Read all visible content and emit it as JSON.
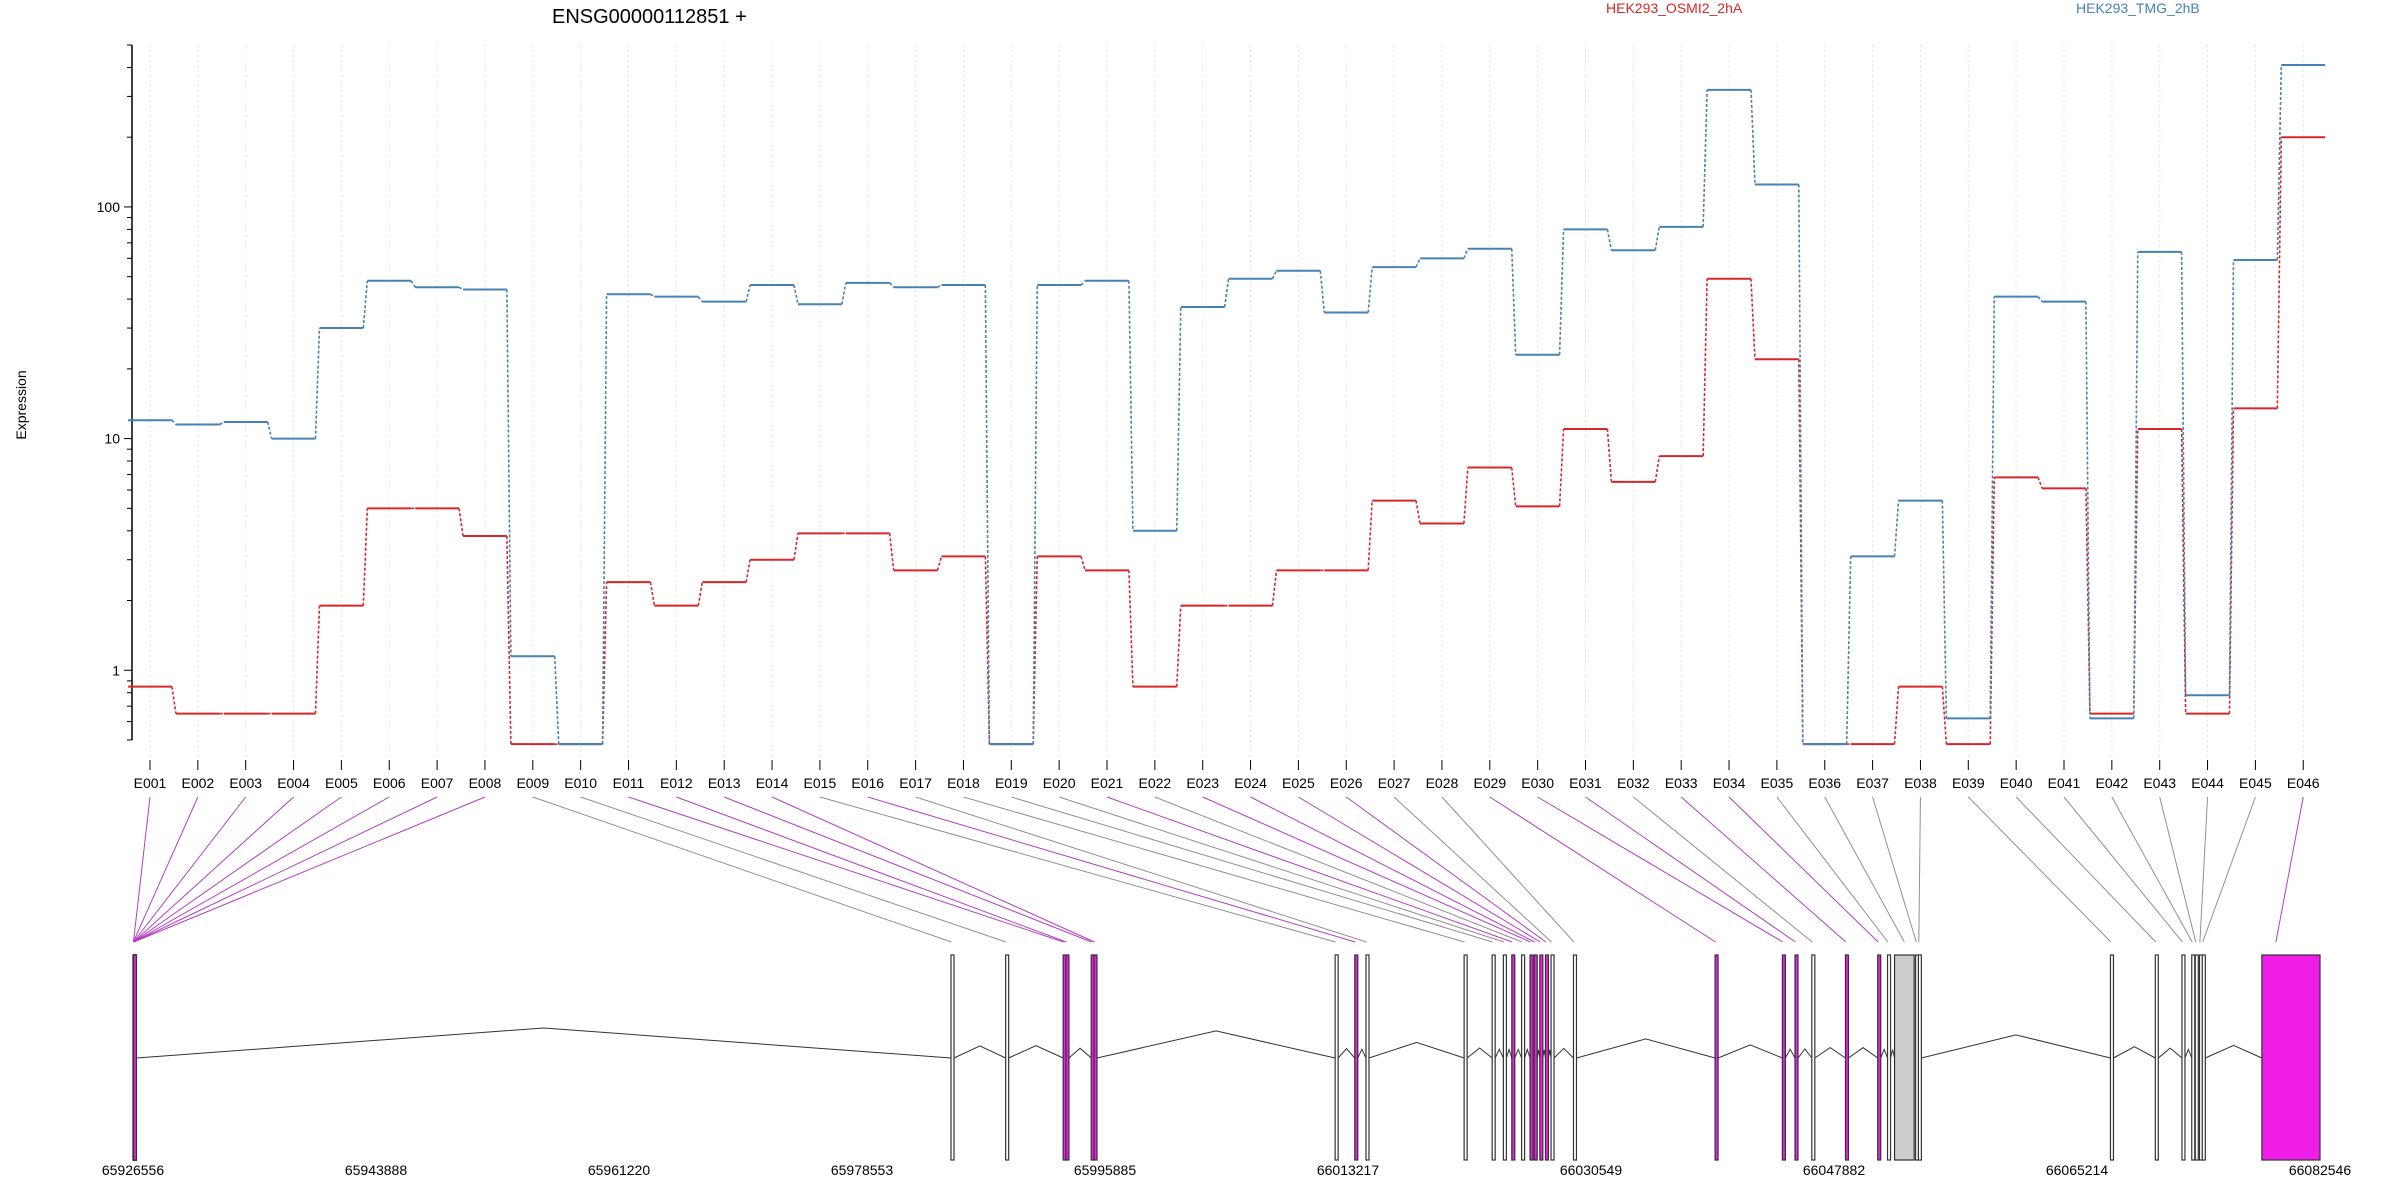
{
  "title": "ENSG00000112851 +",
  "colors": {
    "series1": "#d62728",
    "series2": "#4682b4",
    "exon_hi": "#f01de8",
    "exon_lo": "#555555",
    "exon_gray": "#cccccc"
  },
  "chart_data": {
    "type": "line",
    "title": "ENSG00000112851 +",
    "xlabel": "",
    "ylabel": "Expression",
    "yscale": "log",
    "ylim": [
      0.5,
      500
    ],
    "yticks": [
      1,
      10,
      100
    ],
    "grid": "vertical dotted lines at each exon",
    "legend": "top-right",
    "categories": [
      "E001",
      "E002",
      "E003",
      "E004",
      "E005",
      "E006",
      "E007",
      "E008",
      "E009",
      "E010",
      "E011",
      "E012",
      "E013",
      "E014",
      "E015",
      "E016",
      "E017",
      "E018",
      "E019",
      "E020",
      "E021",
      "E022",
      "E023",
      "E024",
      "E025",
      "E026",
      "E027",
      "E028",
      "E029",
      "E030",
      "E031",
      "E032",
      "E033",
      "E034",
      "E035",
      "E036",
      "E037",
      "E038",
      "E039",
      "E040",
      "E041",
      "E042",
      "E043",
      "E044",
      "E045",
      "E046"
    ],
    "series": [
      {
        "name": "HEK293_OSMI2_2hA",
        "color": "#d62728",
        "values": [
          0.85,
          0.65,
          0.65,
          0.65,
          1.9,
          5.0,
          5.0,
          3.8,
          0.48,
          0.48,
          2.4,
          1.9,
          2.4,
          3.0,
          3.9,
          3.9,
          2.7,
          3.1,
          0.48,
          3.1,
          2.7,
          0.85,
          1.9,
          1.9,
          2.7,
          2.7,
          5.4,
          4.3,
          7.5,
          5.1,
          11.0,
          6.5,
          8.4,
          49.0,
          22.0,
          0.48,
          0.48,
          0.85,
          0.48,
          6.8,
          6.1,
          0.65,
          11.0,
          0.65,
          13.5,
          200.0
        ]
      },
      {
        "name": "HEK293_TMG_2hB",
        "color": "#4682b4",
        "values": [
          12.0,
          11.5,
          11.8,
          10.0,
          30.0,
          48.0,
          45.0,
          44.0,
          1.15,
          0.48,
          42.0,
          41.0,
          39.0,
          46.0,
          38.0,
          47.0,
          45.0,
          46.0,
          0.48,
          46.0,
          48.0,
          4.0,
          37.0,
          49.0,
          53.0,
          35.0,
          55.0,
          60.0,
          66.0,
          23.0,
          80.0,
          65.0,
          82.0,
          320.0,
          125.0,
          0.48,
          3.1,
          5.4,
          0.62,
          41.0,
          39.0,
          0.62,
          64.0,
          0.78,
          59.0,
          410.0
        ]
      }
    ]
  },
  "gene_model": {
    "coord_ticks": [
      "65926556",
      "65943888",
      "65961220",
      "65978553",
      "65995885",
      "66013217",
      "66030549",
      "66047882",
      "66065214",
      "66082546"
    ],
    "genomic_range": [
      65926556,
      66082546
    ],
    "exons": [
      {
        "id": "E001",
        "start": 65926556,
        "end": 65926620,
        "type": "hi"
      },
      {
        "id": "E002",
        "start": 65926560,
        "end": 65926600,
        "type": "hi"
      },
      {
        "id": "E003",
        "start": 65926565,
        "end": 65926610,
        "type": "hi"
      },
      {
        "id": "E004",
        "start": 65926570,
        "end": 65926615,
        "type": "hi"
      },
      {
        "id": "E005",
        "start": 65926575,
        "end": 65926618,
        "type": "hi"
      },
      {
        "id": "E006",
        "start": 65926580,
        "end": 65926620,
        "type": "hi"
      },
      {
        "id": "E007",
        "start": 65926585,
        "end": 65926620,
        "type": "hi"
      },
      {
        "id": "E008",
        "start": 65926590,
        "end": 65926620,
        "type": "hi"
      },
      {
        "id": "E009",
        "start": 65984900,
        "end": 65984960,
        "type": "lo"
      },
      {
        "id": "E010",
        "start": 65988800,
        "end": 65988860,
        "type": "lo"
      },
      {
        "id": "E011",
        "start": 65992900,
        "end": 65992960,
        "type": "hi"
      },
      {
        "id": "E012",
        "start": 65993100,
        "end": 65993160,
        "type": "hi"
      },
      {
        "id": "E013",
        "start": 65994900,
        "end": 65994960,
        "type": "hi"
      },
      {
        "id": "E014",
        "start": 65995100,
        "end": 65995160,
        "type": "hi"
      },
      {
        "id": "E015",
        "start": 66012300,
        "end": 66012360,
        "type": "lo"
      },
      {
        "id": "E016",
        "start": 66013700,
        "end": 66013760,
        "type": "hi"
      },
      {
        "id": "E017",
        "start": 66014500,
        "end": 66014560,
        "type": "lo"
      },
      {
        "id": "E018",
        "start": 66021500,
        "end": 66021560,
        "type": "lo"
      },
      {
        "id": "E019",
        "start": 66023500,
        "end": 66023560,
        "type": "lo"
      },
      {
        "id": "E020",
        "start": 66024300,
        "end": 66024360,
        "type": "lo"
      },
      {
        "id": "E021",
        "start": 66024900,
        "end": 66024960,
        "type": "hi"
      },
      {
        "id": "E022",
        "start": 66025600,
        "end": 66025660,
        "type": "lo"
      },
      {
        "id": "E023",
        "start": 66026200,
        "end": 66026260,
        "type": "hi"
      },
      {
        "id": "E024",
        "start": 66026500,
        "end": 66026560,
        "type": "hi"
      },
      {
        "id": "E025",
        "start": 66026900,
        "end": 66026960,
        "type": "hi"
      },
      {
        "id": "E026",
        "start": 66027300,
        "end": 66027360,
        "type": "hi"
      },
      {
        "id": "E027",
        "start": 66027700,
        "end": 66027760,
        "type": "lo"
      },
      {
        "id": "E028",
        "start": 66029300,
        "end": 66029360,
        "type": "lo"
      },
      {
        "id": "E029",
        "start": 66039400,
        "end": 66039460,
        "type": "hi"
      },
      {
        "id": "E030",
        "start": 66044200,
        "end": 66044260,
        "type": "hi"
      },
      {
        "id": "E031",
        "start": 66045100,
        "end": 66045160,
        "type": "hi"
      },
      {
        "id": "E032",
        "start": 66046300,
        "end": 66046360,
        "type": "lo"
      },
      {
        "id": "E033",
        "start": 66048700,
        "end": 66048760,
        "type": "hi"
      },
      {
        "id": "E034",
        "start": 66051000,
        "end": 66051060,
        "type": "hi"
      },
      {
        "id": "E035",
        "start": 66051700,
        "end": 66051760,
        "type": "lo"
      },
      {
        "id": "E036",
        "start": 66052200,
        "end": 66053600,
        "type": "gray"
      },
      {
        "id": "E037",
        "start": 66053700,
        "end": 66053800,
        "type": "lo"
      },
      {
        "id": "E038",
        "start": 66053900,
        "end": 66053960,
        "type": "lo"
      },
      {
        "id": "E039",
        "start": 66067600,
        "end": 66067660,
        "type": "lo"
      },
      {
        "id": "E040",
        "start": 66070800,
        "end": 66070860,
        "type": "lo"
      },
      {
        "id": "E041",
        "start": 66072700,
        "end": 66072760,
        "type": "lo"
      },
      {
        "id": "E042",
        "start": 66073400,
        "end": 66073460,
        "type": "lo"
      },
      {
        "id": "E043",
        "start": 66073650,
        "end": 66073720,
        "type": "lo"
      },
      {
        "id": "E044",
        "start": 66073950,
        "end": 66074010,
        "type": "lo"
      },
      {
        "id": "E045",
        "start": 66074150,
        "end": 66074210,
        "type": "lo"
      },
      {
        "id": "E046",
        "start": 66078400,
        "end": 66082546,
        "type": "hi"
      }
    ]
  }
}
